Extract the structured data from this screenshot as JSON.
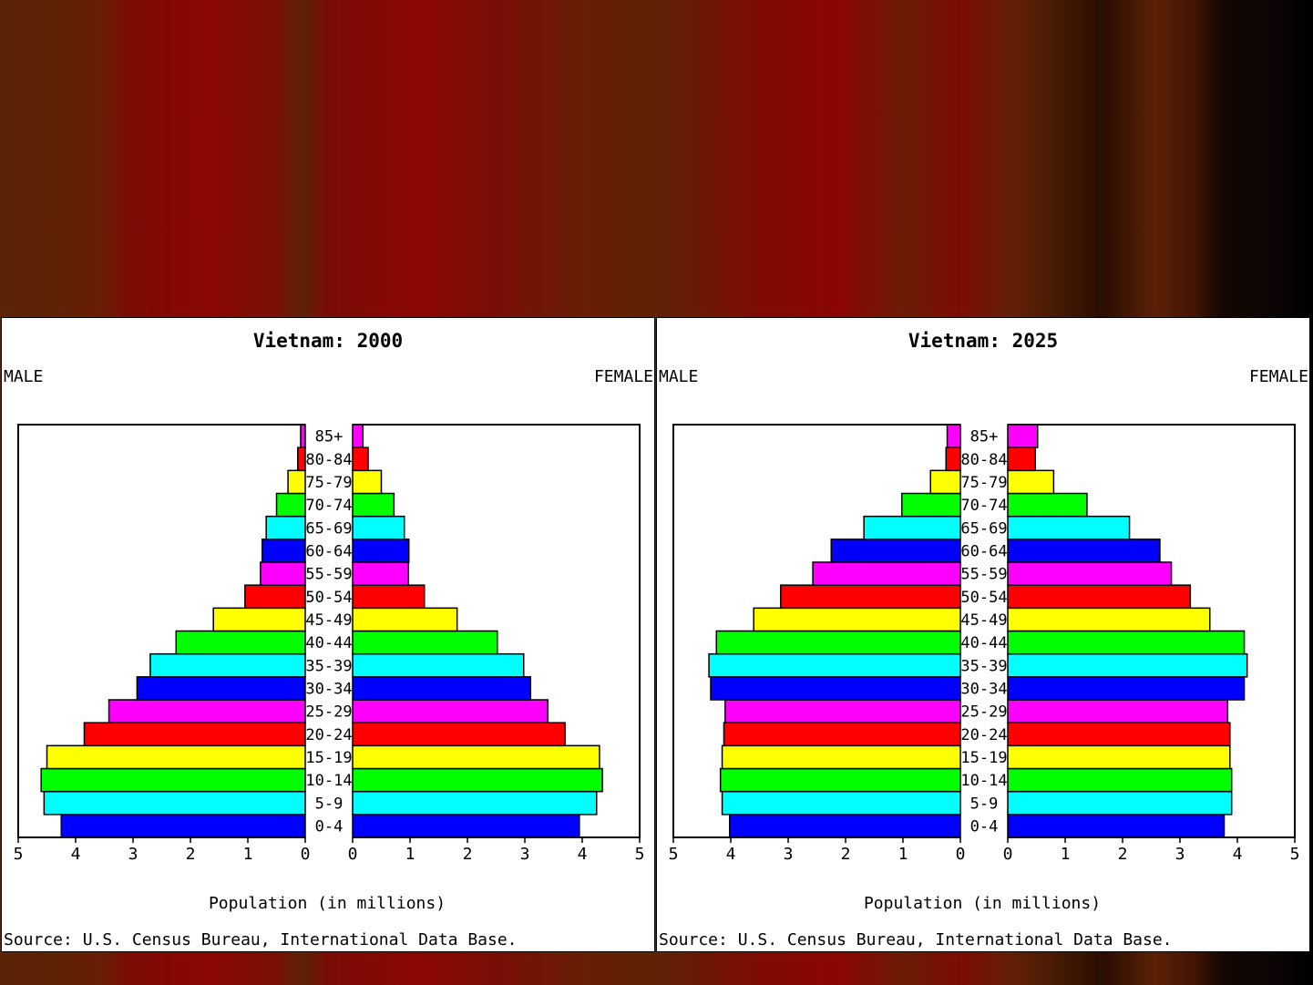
{
  "colors": [
    "#0000ff",
    "#00ffff",
    "#00ff00",
    "#ffff00",
    "#ff0000",
    "#ff00ff"
  ],
  "chart_data": [
    {
      "type": "bar",
      "title": "Vietnam: 2000",
      "left_label": "MALE",
      "right_label": "FEMALE",
      "xlabel": "Population (in millions)",
      "source": "Source: U.S. Census Bureau, International Data Base.",
      "xlim": [
        0,
        5
      ],
      "ticks": [
        "5",
        "4",
        "3",
        "2",
        "1",
        "0"
      ],
      "ticks_right": [
        "0",
        "1",
        "2",
        "3",
        "4",
        "5"
      ],
      "categories": [
        "0-4",
        "5-9",
        "10-14",
        "15-19",
        "20-24",
        "25-29",
        "30-34",
        "35-39",
        "40-44",
        "45-49",
        "50-54",
        "55-59",
        "60-64",
        "65-69",
        "70-74",
        "75-79",
        "80-84",
        "85+"
      ],
      "series": [
        {
          "name": "MALE",
          "values": [
            4.25,
            4.55,
            4.6,
            4.5,
            3.85,
            3.42,
            2.93,
            2.7,
            2.25,
            1.6,
            1.05,
            0.78,
            0.75,
            0.68,
            0.5,
            0.3,
            0.13,
            0.08
          ]
        },
        {
          "name": "FEMALE",
          "values": [
            3.95,
            4.25,
            4.35,
            4.3,
            3.7,
            3.4,
            3.1,
            2.98,
            2.52,
            1.82,
            1.25,
            0.97,
            0.98,
            0.9,
            0.72,
            0.5,
            0.27,
            0.18
          ]
        }
      ]
    },
    {
      "type": "bar",
      "title": "Vietnam: 2025",
      "left_label": "MALE",
      "right_label": "FEMALE",
      "xlabel": "Population (in millions)",
      "source": "Source: U.S. Census Bureau, International Data Base.",
      "xlim": [
        0,
        5
      ],
      "ticks": [
        "5",
        "4",
        "3",
        "2",
        "1",
        "0"
      ],
      "ticks_right": [
        "0",
        "1",
        "2",
        "3",
        "4",
        "5"
      ],
      "categories": [
        "0-4",
        "5-9",
        "10-14",
        "15-19",
        "20-24",
        "25-29",
        "30-34",
        "35-39",
        "40-44",
        "45-49",
        "50-54",
        "55-59",
        "60-64",
        "65-69",
        "70-74",
        "75-79",
        "80-84",
        "85+"
      ],
      "series": [
        {
          "name": "MALE",
          "values": [
            4.02,
            4.15,
            4.18,
            4.15,
            4.12,
            4.1,
            4.35,
            4.38,
            4.25,
            3.6,
            3.13,
            2.57,
            2.25,
            1.68,
            1.02,
            0.52,
            0.25,
            0.23
          ]
        },
        {
          "name": "FEMALE",
          "values": [
            3.77,
            3.9,
            3.9,
            3.87,
            3.87,
            3.83,
            4.12,
            4.17,
            4.12,
            3.52,
            3.18,
            2.85,
            2.65,
            2.12,
            1.38,
            0.8,
            0.48,
            0.52
          ]
        }
      ]
    }
  ]
}
